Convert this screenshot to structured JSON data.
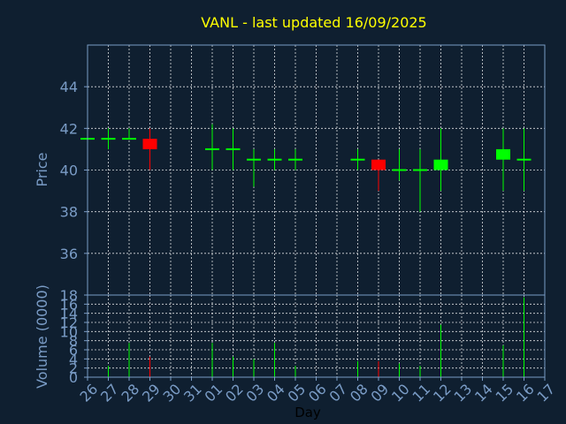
{
  "chart_data": {
    "type": "candlestick",
    "title": "VANL - last updated 16/09/2025",
    "xlabel": "Day",
    "ylabel_price": "Price",
    "ylabel_volume": "Volume (0000)",
    "x_ticks": [
      "26",
      "27",
      "28",
      "29",
      "30",
      "31",
      "01",
      "02",
      "03",
      "04",
      "05",
      "06",
      "07",
      "08",
      "09",
      "10",
      "11",
      "12",
      "13",
      "14",
      "15",
      "16",
      "17"
    ],
    "price_ylim": [
      34,
      46
    ],
    "price_ticks": [
      "36",
      "38",
      "40",
      "42",
      "44"
    ],
    "volume_ylim": [
      0,
      18
    ],
    "volume_ticks": [
      "0",
      "2",
      "4",
      "6",
      "8",
      "10",
      "12",
      "14",
      "16",
      "18"
    ],
    "colors": {
      "up": "#00ff00",
      "down": "#ff0000",
      "grid": "#ffffff",
      "axis": "#7a9cc6",
      "title": "#ffff00",
      "background": "#0f1f30"
    },
    "candles": [
      {
        "day": "26",
        "open": 41.5,
        "high": 41.5,
        "low": 41.5,
        "close": 41.5,
        "volume": 0
      },
      {
        "day": "27",
        "open": 41.5,
        "high": 42.0,
        "low": 41.0,
        "close": 41.5,
        "volume": 2.5
      },
      {
        "day": "28",
        "open": 41.5,
        "high": 42.0,
        "low": 41.5,
        "close": 41.5,
        "volume": 7.5
      },
      {
        "day": "29",
        "open": 41.5,
        "high": 42.0,
        "low": 40.0,
        "close": 41.0,
        "volume": 4.5
      },
      {
        "day": "01",
        "open": 41.0,
        "high": 42.2,
        "low": 40.0,
        "close": 41.0,
        "volume": 7.5
      },
      {
        "day": "02",
        "open": 41.0,
        "high": 42.0,
        "low": 40.0,
        "close": 41.0,
        "volume": 4.5
      },
      {
        "day": "03",
        "open": 40.5,
        "high": 41.0,
        "low": 39.2,
        "close": 40.5,
        "volume": 4.0
      },
      {
        "day": "04",
        "open": 40.5,
        "high": 41.0,
        "low": 40.0,
        "close": 40.5,
        "volume": 7.5
      },
      {
        "day": "05",
        "open": 40.5,
        "high": 41.0,
        "low": 40.0,
        "close": 40.5,
        "volume": 2.5
      },
      {
        "day": "08",
        "open": 40.5,
        "high": 41.0,
        "low": 40.0,
        "close": 40.5,
        "volume": 3.5
      },
      {
        "day": "09",
        "open": 40.5,
        "high": 40.5,
        "low": 39.0,
        "close": 40.0,
        "volume": 3.5
      },
      {
        "day": "10",
        "open": 40.0,
        "high": 41.0,
        "low": 39.5,
        "close": 40.0,
        "volume": 3.0
      },
      {
        "day": "11",
        "open": 40.0,
        "high": 41.0,
        "low": 38.0,
        "close": 40.0,
        "volume": 2.5
      },
      {
        "day": "12",
        "open": 40.0,
        "high": 42.0,
        "low": 39.0,
        "close": 40.5,
        "volume": 11.5
      },
      {
        "day": "15",
        "open": 40.5,
        "high": 42.0,
        "low": 39.0,
        "close": 41.0,
        "volume": 7.0
      },
      {
        "day": "16",
        "open": 40.5,
        "high": 42.0,
        "low": 39.0,
        "close": 40.5,
        "volume": 17.5
      }
    ]
  }
}
